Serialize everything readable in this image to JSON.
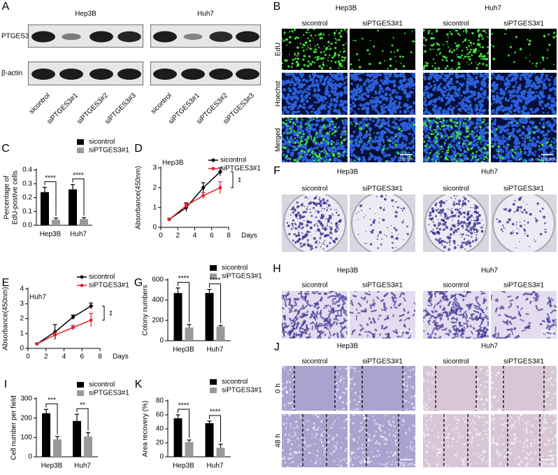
{
  "panel_a": {
    "letter": "A",
    "cell_lines": [
      "Hep3B",
      "Huh7"
    ],
    "proteins": [
      "PTGES3",
      "β-actin"
    ],
    "lanes": [
      "sicontrol",
      "siPTGES3#1",
      "siPTGES3#2",
      "siPTGES3#3"
    ]
  },
  "panel_b": {
    "letter": "B",
    "cell_lines": [
      "Hep3B",
      "Huh7"
    ],
    "groups": [
      "sicontrol",
      "siPTGES3#1"
    ],
    "rows": [
      "EdU",
      "Hoechst",
      "Merged"
    ],
    "scale_bar": "100 μm"
  },
  "panel_f": {
    "letter": "F",
    "cell_lines": [
      "Hep3B",
      "Huh7"
    ],
    "groups": [
      "sicontrol",
      "siPTGES3#1"
    ]
  },
  "panel_h": {
    "letter": "H",
    "cell_lines": [
      "Hep3B",
      "Huh7"
    ],
    "groups": [
      "sicontrol",
      "siPTGES3#1"
    ],
    "scale_bar": "100 μm"
  },
  "panel_j": {
    "letter": "J",
    "cell_lines": [
      "Hep3B",
      "Huh7"
    ],
    "groups": [
      "sicontrol",
      "siPTGES3#1"
    ],
    "rows": [
      "0 h",
      "48 h"
    ],
    "scale_bar": "500 μm"
  },
  "chart_data": [
    {
      "panel": "C",
      "type": "bar",
      "ylabel": [
        "Percentage of",
        "EdU-postive cells"
      ],
      "categories": [
        "Hep3B",
        "Huh7"
      ],
      "series": [
        {
          "name": "sicontrol",
          "color": "#000000",
          "values": [
            0.24,
            0.26
          ],
          "errors": [
            0.035,
            0.035
          ]
        },
        {
          "name": "siPTGES3#1",
          "color": "#999999",
          "values": [
            0.04,
            0.045
          ],
          "errors": [
            0.012,
            0.01
          ]
        }
      ],
      "ylim": [
        0,
        0.4
      ],
      "yticks": [
        {
          "value": 0,
          "label": "0.0"
        },
        0.1,
        0.2,
        0.3,
        0.4
      ],
      "significance": [
        "****",
        "****"
      ]
    },
    {
      "panel": "D",
      "type": "line",
      "title": "Hep3B",
      "ylabel": "Absorbance(450nm)",
      "xlabel": "Days",
      "x": [
        1,
        3,
        5,
        7
      ],
      "series": [
        {
          "name": "sicontrol",
          "color": "#000000",
          "values": [
            0.4,
            1.0,
            2.0,
            2.8
          ],
          "errors": [
            0.05,
            0.2,
            0.25,
            0.2
          ]
        },
        {
          "name": "siPTGES3#1",
          "color": "#e0262b",
          "values": [
            0.4,
            1.1,
            1.6,
            2.0
          ],
          "errors": [
            0.05,
            0.15,
            0.15,
            0.3
          ]
        }
      ],
      "xlim": [
        0,
        8
      ],
      "xticks": [
        0,
        2,
        4,
        6,
        8
      ],
      "ylim": [
        0,
        3
      ],
      "yticks": [
        0,
        1,
        2,
        3
      ],
      "significance": "**"
    },
    {
      "panel": "E",
      "type": "line",
      "title": "Huh7",
      "ylabel": "Absorbance(450nm)",
      "xlabel": "Days",
      "x": [
        1,
        3,
        5,
        7
      ],
      "series": [
        {
          "name": "sicontrol",
          "color": "#000000",
          "values": [
            0.3,
            1.1,
            2.1,
            2.85
          ],
          "errors": [
            0.05,
            0.5,
            0.15,
            0.2
          ]
        },
        {
          "name": "siPTGES3#1",
          "color": "#e0262b",
          "values": [
            0.3,
            0.9,
            1.4,
            1.9
          ],
          "errors": [
            0.05,
            0.2,
            0.15,
            0.45
          ]
        }
      ],
      "xlim": [
        0,
        8
      ],
      "xticks": [
        0,
        2,
        4,
        6,
        8
      ],
      "ylim": [
        0,
        4
      ],
      "yticks": [
        0,
        1,
        2,
        3,
        4
      ],
      "significance": "**"
    },
    {
      "panel": "G",
      "type": "bar",
      "ylabel": "Colony numbers",
      "categories": [
        "Hep3B",
        "Huh7"
      ],
      "series": [
        {
          "name": "sicontrol",
          "color": "#000000",
          "values": [
            470,
            470
          ],
          "errors": [
            50,
            35
          ]
        },
        {
          "name": "siPTGES3#1",
          "color": "#999999",
          "values": [
            130,
            140
          ],
          "errors": [
            30,
            10
          ]
        }
      ],
      "ylim": [
        0,
        600
      ],
      "yticks": [
        0,
        200,
        400,
        600
      ],
      "significance": [
        "****",
        "****"
      ]
    },
    {
      "panel": "I",
      "type": "bar",
      "ylabel": "Cell number per field",
      "categories": [
        "Hep3B",
        "Huh7"
      ],
      "series": [
        {
          "name": "sicontrol",
          "color": "#000000",
          "values": [
            225,
            185
          ],
          "errors": [
            20,
            35
          ]
        },
        {
          "name": "siPTGES3#1",
          "color": "#999999",
          "values": [
            90,
            105
          ],
          "errors": [
            15,
            20
          ]
        }
      ],
      "ylim": [
        0,
        300
      ],
      "yticks": [
        0,
        100,
        200,
        300
      ],
      "significance": [
        "***",
        "**"
      ]
    },
    {
      "panel": "K",
      "type": "bar",
      "ylabel": "Area recovery (%)",
      "categories": [
        "Hep3B",
        "Huh7"
      ],
      "series": [
        {
          "name": "sicontrol",
          "color": "#000000",
          "values": [
            55,
            48
          ],
          "errors": [
            5,
            3
          ]
        },
        {
          "name": "siPTGES3#1",
          "color": "#999999",
          "values": [
            21,
            13
          ],
          "errors": [
            3,
            5
          ]
        }
      ],
      "ylim": [
        0,
        80
      ],
      "yticks": [
        0,
        20,
        40,
        60,
        80
      ],
      "significance": [
        "****",
        "****"
      ]
    }
  ]
}
